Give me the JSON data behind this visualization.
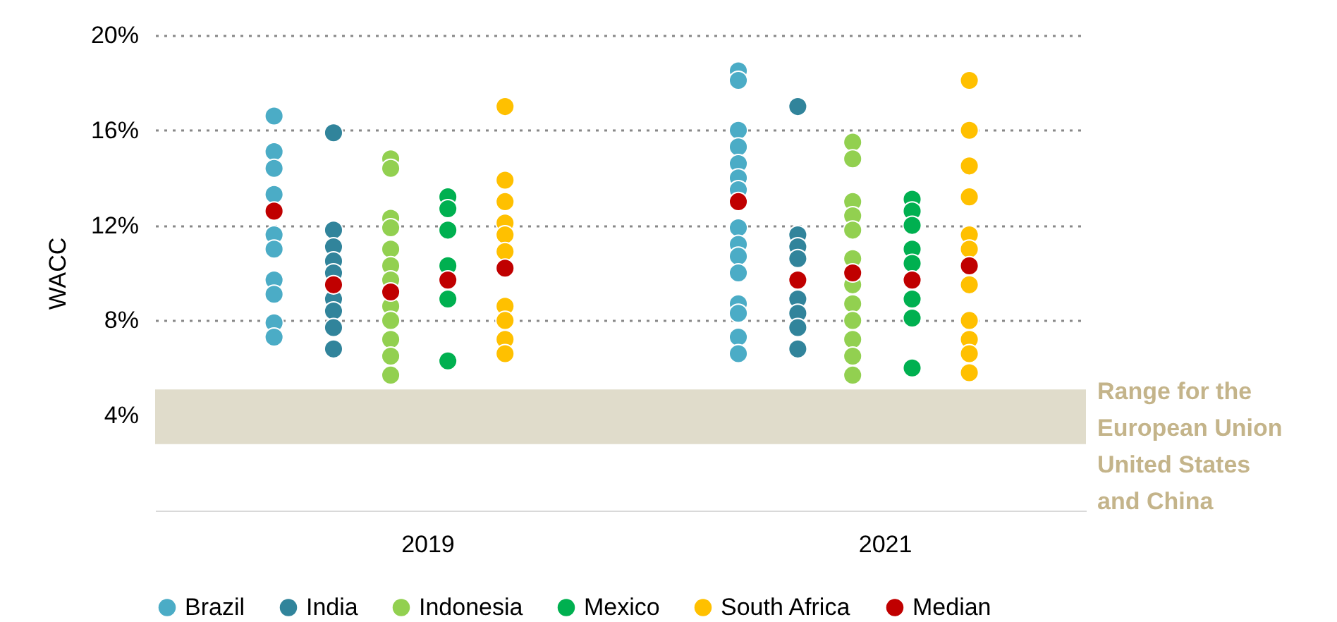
{
  "chart_data": {
    "type": "scatter",
    "ylabel": "WACC",
    "marker": "circle",
    "grid": "y",
    "legend": "bottom",
    "xlim": [
      2017.81,
      2021.88
    ],
    "xticks": [
      {
        "value": 2019,
        "label": "2019"
      },
      {
        "value": 2021,
        "label": "2021"
      }
    ],
    "ylim": [
      0,
      20
    ],
    "yticks": [
      {
        "value": 4,
        "label": "4%"
      },
      {
        "value": 8,
        "label": "8%"
      },
      {
        "value": 12,
        "label": "12%"
      },
      {
        "value": 16,
        "label": "16%"
      },
      {
        "value": 20,
        "label": "20%"
      }
    ],
    "series": [
      {
        "name": "Brazil",
        "color": "#4bacc6",
        "x": [
          2018.33,
          2018.33,
          2018.33,
          2018.33,
          2018.33,
          2018.33,
          2018.33,
          2018.33,
          2018.33,
          2018.33,
          2020.36,
          2020.36,
          2020.36,
          2020.36,
          2020.36,
          2020.36,
          2020.36,
          2020.36,
          2020.36,
          2020.36,
          2020.36,
          2020.36,
          2020.36,
          2020.36,
          2020.36
        ],
        "values": [
          16.6,
          15.1,
          14.4,
          13.3,
          11.6,
          11.0,
          9.7,
          9.1,
          7.9,
          7.3,
          18.5,
          18.1,
          16.0,
          15.3,
          14.6,
          14.0,
          13.5,
          11.9,
          11.2,
          10.7,
          10.0,
          8.7,
          8.3,
          7.3,
          6.6
        ]
      },
      {
        "name": "India",
        "color": "#31849b",
        "x": [
          2018.59,
          2018.59,
          2018.59,
          2018.59,
          2018.59,
          2018.59,
          2018.59,
          2018.59,
          2018.59,
          2020.62,
          2020.62,
          2020.62,
          2020.62,
          2020.62,
          2020.62,
          2020.62,
          2020.62
        ],
        "values": [
          15.9,
          11.8,
          11.1,
          10.5,
          10.0,
          8.9,
          8.4,
          7.7,
          6.8,
          17.0,
          11.6,
          11.1,
          10.6,
          8.9,
          8.3,
          7.7,
          6.8
        ]
      },
      {
        "name": "Indonesia",
        "color": "#92d050",
        "x": [
          2018.84,
          2018.84,
          2018.84,
          2018.84,
          2018.84,
          2018.84,
          2018.84,
          2018.84,
          2018.84,
          2018.84,
          2018.84,
          2018.84,
          2020.86,
          2020.86,
          2020.86,
          2020.86,
          2020.86,
          2020.86,
          2020.86,
          2020.86,
          2020.86,
          2020.86,
          2020.86,
          2020.86
        ],
        "values": [
          14.8,
          14.4,
          12.3,
          11.9,
          11.0,
          10.3,
          9.7,
          8.6,
          8.0,
          7.2,
          6.5,
          5.7,
          15.5,
          14.8,
          13.0,
          12.4,
          11.8,
          10.6,
          9.5,
          8.7,
          8.0,
          7.2,
          6.5,
          5.7
        ]
      },
      {
        "name": "Mexico",
        "color": "#00b050",
        "x": [
          2019.09,
          2019.09,
          2019.09,
          2019.09,
          2019.09,
          2019.09,
          2021.12,
          2021.12,
          2021.12,
          2021.12,
          2021.12,
          2021.12,
          2021.12,
          2021.12
        ],
        "values": [
          13.2,
          12.7,
          11.8,
          10.3,
          8.9,
          6.3,
          13.1,
          12.6,
          12.0,
          11.0,
          10.4,
          8.9,
          8.1,
          6.0
        ]
      },
      {
        "name": "South Africa",
        "color": "#ffc000",
        "x": [
          2019.34,
          2019.34,
          2019.34,
          2019.34,
          2019.34,
          2019.34,
          2019.34,
          2019.34,
          2019.34,
          2019.34,
          2021.37,
          2021.37,
          2021.37,
          2021.37,
          2021.37,
          2021.37,
          2021.37,
          2021.37,
          2021.37,
          2021.37,
          2021.37
        ],
        "values": [
          17.0,
          13.9,
          13.0,
          12.1,
          11.6,
          10.9,
          8.6,
          8.0,
          7.2,
          6.6,
          18.1,
          16.0,
          14.5,
          13.2,
          11.6,
          11.0,
          9.5,
          8.0,
          7.2,
          6.6,
          5.8
        ]
      },
      {
        "name": "Median",
        "color": "#c00000",
        "x": [
          2018.33,
          2018.59,
          2018.84,
          2019.09,
          2019.34,
          2020.36,
          2020.62,
          2020.86,
          2021.12,
          2021.37
        ],
        "values": [
          12.6,
          9.5,
          9.2,
          9.7,
          10.2,
          13.0,
          9.7,
          10.0,
          9.7,
          10.3
        ]
      }
    ],
    "bands": [
      {
        "axis": "y",
        "from": 2.8,
        "to": 5.1,
        "label": "Range for the European Union United States and China",
        "color": "#e0dccb"
      }
    ]
  }
}
